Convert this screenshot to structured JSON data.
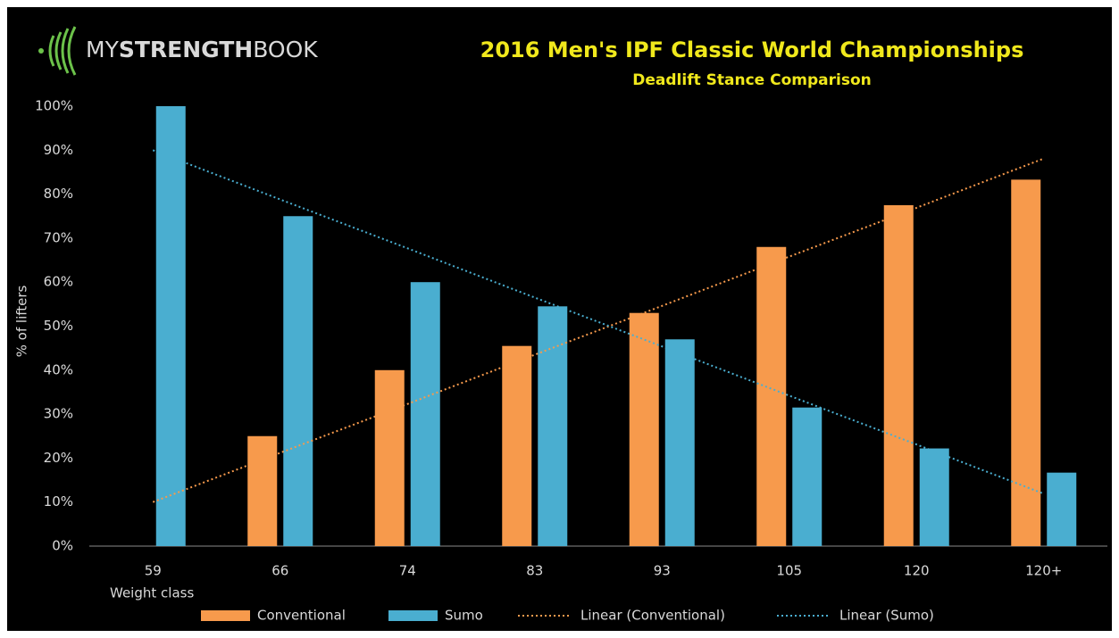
{
  "chart_data": {
    "type": "bar",
    "brand": [
      "MY",
      "STRENGTH",
      "BOOK"
    ],
    "title": "2016 Men's IPF Classic World Championships",
    "subtitle": "Deadlift Stance Comparison",
    "x_label": "Weight class",
    "y_label": "% of lifters",
    "categories": [
      "59",
      "66",
      "74",
      "83",
      "93",
      "105",
      "120",
      "120+"
    ],
    "series": [
      {
        "name": "Conventional",
        "color": "#f79a4c",
        "values": [
          0,
          25,
          40,
          45.5,
          53,
          68,
          77.5,
          83.3
        ]
      },
      {
        "name": "Sumo",
        "color": "#4aaed0",
        "values": [
          100,
          75,
          60,
          54.5,
          47,
          31.5,
          22.2,
          16.7
        ]
      }
    ],
    "trendlines": [
      {
        "name": "Linear (Conventional)",
        "color": "#f79a4c",
        "values": [
          10,
          21.2,
          32.3,
          43.5,
          54.6,
          65.8,
          76.9,
          88.1
        ]
      },
      {
        "name": "Linear (Sumo)",
        "color": "#4aaed0",
        "values": [
          90,
          78.8,
          67.7,
          56.5,
          45.4,
          34.2,
          23.1,
          11.9
        ]
      }
    ],
    "ylim": [
      0,
      100
    ],
    "yticks": [
      {
        "value": 0,
        "label": "0%"
      },
      {
        "value": 10,
        "label": "10%"
      },
      {
        "value": 20,
        "label": "20%"
      },
      {
        "value": 30,
        "label": "30%"
      },
      {
        "value": 40,
        "label": "40%"
      },
      {
        "value": 50,
        "label": "50%"
      },
      {
        "value": 60,
        "label": "60%"
      },
      {
        "value": 70,
        "label": "70%"
      },
      {
        "value": 80,
        "label": "80%"
      },
      {
        "value": 90,
        "label": "90%"
      },
      {
        "value": 100,
        "label": "100%"
      }
    ],
    "grid": false,
    "legend": "bottom"
  }
}
